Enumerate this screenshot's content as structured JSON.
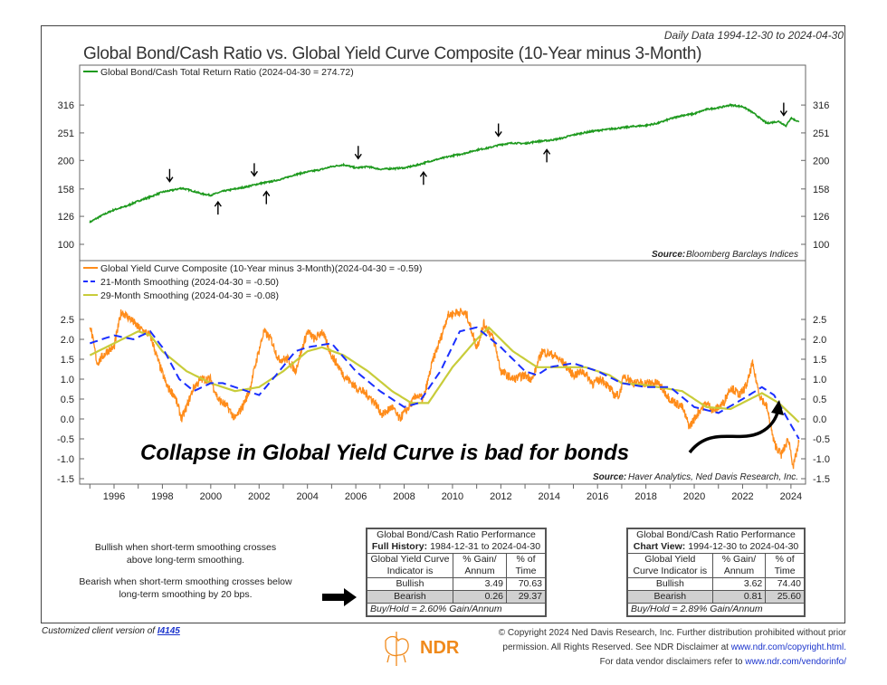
{
  "header": {
    "date_range": "Daily Data 1994-12-30 to 2024-04-30",
    "title": "Global Bond/Cash Ratio vs. Global Yield Curve Composite (10-Year minus 3-Month)"
  },
  "chart_data": [
    {
      "type": "line",
      "scale": "log",
      "ylim": [
        95,
        340
      ],
      "yticks": [
        100,
        126,
        158,
        200,
        251,
        316
      ],
      "legend": [
        {
          "name": "Global Bond/Cash Total Return Ratio (2024-04-30 = 274.72)",
          "color": "#1e9a1e"
        }
      ],
      "source_label": "Source:",
      "source": "Bloomberg Barclays Indices",
      "series": [
        {
          "name": "Global Bond/Cash Total Return Ratio",
          "color": "#1e9a1e",
          "x": [
            1995.0,
            1995.5,
            1996.0,
            1996.5,
            1997.0,
            1997.5,
            1998.0,
            1998.5,
            1998.8,
            1999.2,
            1999.6,
            2000.0,
            2000.5,
            2001.0,
            2001.5,
            2002.0,
            2002.5,
            2003.0,
            2003.5,
            2004.0,
            2004.5,
            2005.0,
            2005.5,
            2006.0,
            2006.5,
            2007.0,
            2007.5,
            2008.0,
            2008.5,
            2009.0,
            2009.5,
            2010.0,
            2010.5,
            2011.0,
            2011.5,
            2012.0,
            2012.5,
            2013.0,
            2013.5,
            2014.0,
            2014.5,
            2015.0,
            2015.5,
            2016.0,
            2016.5,
            2017.0,
            2017.5,
            2018.0,
            2018.5,
            2019.0,
            2019.5,
            2020.0,
            2020.5,
            2021.0,
            2021.5,
            2022.0,
            2022.4,
            2022.8,
            2023.0,
            2023.5,
            2023.8,
            2024.0,
            2024.33
          ],
          "y": [
            120,
            127,
            133,
            137,
            143,
            148,
            154,
            157,
            159,
            156,
            152,
            150,
            155,
            158,
            161,
            165,
            168,
            172,
            178,
            182,
            185,
            190,
            193,
            188,
            190,
            186,
            187,
            188,
            192,
            198,
            203,
            208,
            212,
            218,
            222,
            228,
            231,
            230,
            234,
            236,
            240,
            247,
            252,
            256,
            259,
            262,
            265,
            267,
            272,
            282,
            290,
            294,
            305,
            309,
            316,
            312,
            298,
            280,
            272,
            276,
            266,
            284,
            274.72
          ]
        }
      ],
      "markers": {
        "down": [
          1998.3,
          2001.8,
          2006.1,
          2011.9,
          2023.7
        ],
        "up": [
          2000.3,
          2002.3,
          2008.8,
          2013.9
        ]
      }
    },
    {
      "type": "line",
      "ylim": [
        -1.5,
        2.75
      ],
      "yticks": [
        -1.5,
        -1.0,
        -0.5,
        0.0,
        0.5,
        1.0,
        1.5,
        2.0,
        2.5
      ],
      "xticks": [
        1996,
        1998,
        2000,
        2002,
        2004,
        2006,
        2008,
        2010,
        2012,
        2014,
        2016,
        2018,
        2020,
        2022,
        2024
      ],
      "legend": [
        {
          "name": "Global Yield Curve Composite (10-Year minus 3-Month)(2024-04-30 = -0.59)",
          "color": "#ff8c1a",
          "style": "solid"
        },
        {
          "name": "21-Month Smoothing (2024-04-30 = -0.50)",
          "color": "#1a2fff",
          "style": "dashed"
        },
        {
          "name": "29-Month Smoothing (2024-04-30 = -0.08)",
          "color": "#c8cc3a",
          "style": "solid"
        }
      ],
      "annotation": "Collapse in Global Yield Curve is bad for bonds",
      "source_label": "Source:",
      "source": "Haver Analytics, Ned Davis Research, Inc.",
      "series": [
        {
          "name": "Global Yield Curve Composite (10-Year minus 3-Month)",
          "color": "#ff8c1a",
          "x": [
            1995.0,
            1995.3,
            1995.7,
            1996.0,
            1996.3,
            1996.7,
            1997.0,
            1997.5,
            1997.8,
            1998.2,
            1998.5,
            1998.8,
            1999.0,
            1999.3,
            1999.6,
            2000.0,
            2000.3,
            2000.7,
            2001.0,
            2001.3,
            2001.6,
            2001.9,
            2002.2,
            2002.5,
            2002.8,
            2003.2,
            2003.5,
            2003.8,
            2004.0,
            2004.3,
            2004.6,
            2005.0,
            2005.5,
            2006.0,
            2006.5,
            2006.8,
            2007.1,
            2007.5,
            2007.8,
            2008.2,
            2008.5,
            2008.8,
            2009.2,
            2009.5,
            2009.8,
            2010.3,
            2010.6,
            2011.0,
            2011.3,
            2011.7,
            2012.0,
            2012.5,
            2013.0,
            2013.3,
            2013.7,
            2014.2,
            2014.6,
            2015.0,
            2015.4,
            2015.8,
            2016.2,
            2016.7,
            2016.9,
            2017.1,
            2017.5,
            2018.0,
            2018.5,
            2019.0,
            2019.5,
            2019.8,
            2020.2,
            2020.5,
            2020.8,
            2021.2,
            2021.5,
            2021.9,
            2022.2,
            2022.4,
            2022.7,
            2023.0,
            2023.3,
            2023.6,
            2023.9,
            2024.1,
            2024.33
          ],
          "y": [
            2.4,
            1.4,
            1.7,
            1.8,
            2.7,
            2.5,
            2.3,
            2.1,
            1.5,
            0.8,
            0.6,
            0.0,
            0.3,
            0.8,
            1.0,
            1.0,
            0.5,
            0.3,
            0.0,
            0.3,
            0.7,
            1.5,
            2.2,
            2.0,
            1.5,
            1.5,
            1.2,
            1.8,
            2.2,
            2.0,
            2.2,
            1.6,
            1.1,
            0.8,
            0.6,
            0.4,
            0.1,
            0.3,
            0.0,
            0.3,
            0.6,
            0.5,
            1.5,
            2.0,
            2.6,
            2.7,
            2.6,
            1.8,
            2.4,
            2.0,
            1.2,
            1.0,
            1.1,
            1.0,
            1.7,
            1.6,
            1.4,
            1.1,
            1.2,
            0.9,
            1.0,
            0.6,
            0.6,
            1.1,
            0.9,
            0.9,
            0.9,
            0.5,
            0.3,
            -0.2,
            0.2,
            0.4,
            0.2,
            0.4,
            0.8,
            0.6,
            0.9,
            1.4,
            0.6,
            0.3,
            -0.6,
            -0.9,
            -0.5,
            -1.2,
            -0.59
          ]
        },
        {
          "name": "21-Month Smoothing",
          "color": "#1a2fff",
          "x": [
            1995.0,
            1996.0,
            1996.8,
            1997.5,
            1998.0,
            1998.7,
            1999.3,
            2000.0,
            2000.5,
            2001.5,
            2002.0,
            2002.7,
            2003.5,
            2004.0,
            2005.0,
            2006.0,
            2007.0,
            2008.0,
            2008.6,
            2009.5,
            2010.3,
            2011.0,
            2012.0,
            2013.0,
            2013.5,
            2014.0,
            2015.0,
            2016.0,
            2017.0,
            2018.0,
            2019.0,
            2020.0,
            2021.0,
            2022.0,
            2022.8,
            2023.3,
            2024.33
          ],
          "y": [
            1.9,
            2.1,
            2.0,
            2.2,
            1.8,
            1.0,
            0.7,
            0.9,
            0.9,
            0.7,
            0.6,
            1.1,
            1.7,
            1.8,
            1.9,
            1.2,
            0.7,
            0.3,
            0.4,
            1.2,
            2.2,
            2.3,
            1.8,
            1.2,
            1.1,
            1.3,
            1.4,
            1.2,
            0.9,
            0.8,
            0.8,
            0.3,
            0.15,
            0.5,
            0.8,
            0.6,
            -0.5
          ]
        },
        {
          "name": "29-Month Smoothing",
          "color": "#c8cc3a",
          "x": [
            1995.0,
            1996.0,
            1997.0,
            1997.5,
            1998.0,
            1999.0,
            2000.0,
            2001.0,
            2002.0,
            2003.0,
            2004.0,
            2004.6,
            2005.5,
            2006.5,
            2007.5,
            2008.3,
            2009.0,
            2010.0,
            2011.0,
            2011.5,
            2012.5,
            2013.5,
            2014.5,
            2015.5,
            2016.5,
            2017.0,
            2018.0,
            2019.5,
            2020.5,
            2021.5,
            2022.8,
            2023.5,
            2024.33
          ],
          "y": [
            1.6,
            1.9,
            2.2,
            2.1,
            1.7,
            1.2,
            0.9,
            0.7,
            0.8,
            1.2,
            1.7,
            1.8,
            1.6,
            1.2,
            0.7,
            0.4,
            0.4,
            1.3,
            2.0,
            2.3,
            1.7,
            1.3,
            1.3,
            1.3,
            1.1,
            0.9,
            0.85,
            0.7,
            0.3,
            0.25,
            0.65,
            0.4,
            -0.08
          ]
        }
      ]
    }
  ],
  "notes": {
    "bullish": "Bullish when short-term smoothing crosses above long-term smoothing.",
    "bearish": "Bearish when short-term smoothing crosses below long-term smoothing by 20 bps."
  },
  "tables": [
    {
      "title": "Global Bond/Cash Ratio Performance",
      "period_label": "Full History:",
      "period": "1984-12-31 to 2024-04-30",
      "col1": "Global Yield Curve Indicator is",
      "col2": "% Gain/ Annum",
      "col3": "% of Time",
      "rows": [
        {
          "label": "Bullish",
          "gain": "3.49",
          "time": "70.63"
        },
        {
          "label": "Bearish",
          "gain": "0.26",
          "time": "29.37"
        }
      ],
      "buy_hold": "Buy/Hold = 2.60% Gain/Annum"
    },
    {
      "title": "Global Bond/Cash Ratio Performance",
      "period_label": "Chart View:",
      "period": "1994-12-30 to 2024-04-30",
      "col1": "Global Yield Curve Indicator is",
      "col2": "% Gain/ Annum",
      "col3": "% of Time",
      "rows": [
        {
          "label": "Bullish",
          "gain": "3.62",
          "time": "74.40"
        },
        {
          "label": "Bearish",
          "gain": "0.81",
          "time": "25.60"
        }
      ],
      "buy_hold": "Buy/Hold = 2.89% Gain/Annum"
    }
  ],
  "footer": {
    "client_prefix": "Customized client version of ",
    "client_link": "I4145",
    "logo_text": "NDR",
    "copy1": "© Copyright 2024 Ned Davis Research, Inc. Further distribution prohibited without prior",
    "copy2": "permission. All Rights Reserved. See NDR Disclaimer at ",
    "link1": "www.ndr.com/copyright.html.",
    "copy3": "For data vendor disclaimers refer to ",
    "link2": "www.ndr.com/vendorinfo/"
  },
  "colors": {
    "accent": "#ff8c1a",
    "green": "#1e9a1e",
    "blue": "#1a2fff",
    "yellow": "#c8cc3a"
  }
}
